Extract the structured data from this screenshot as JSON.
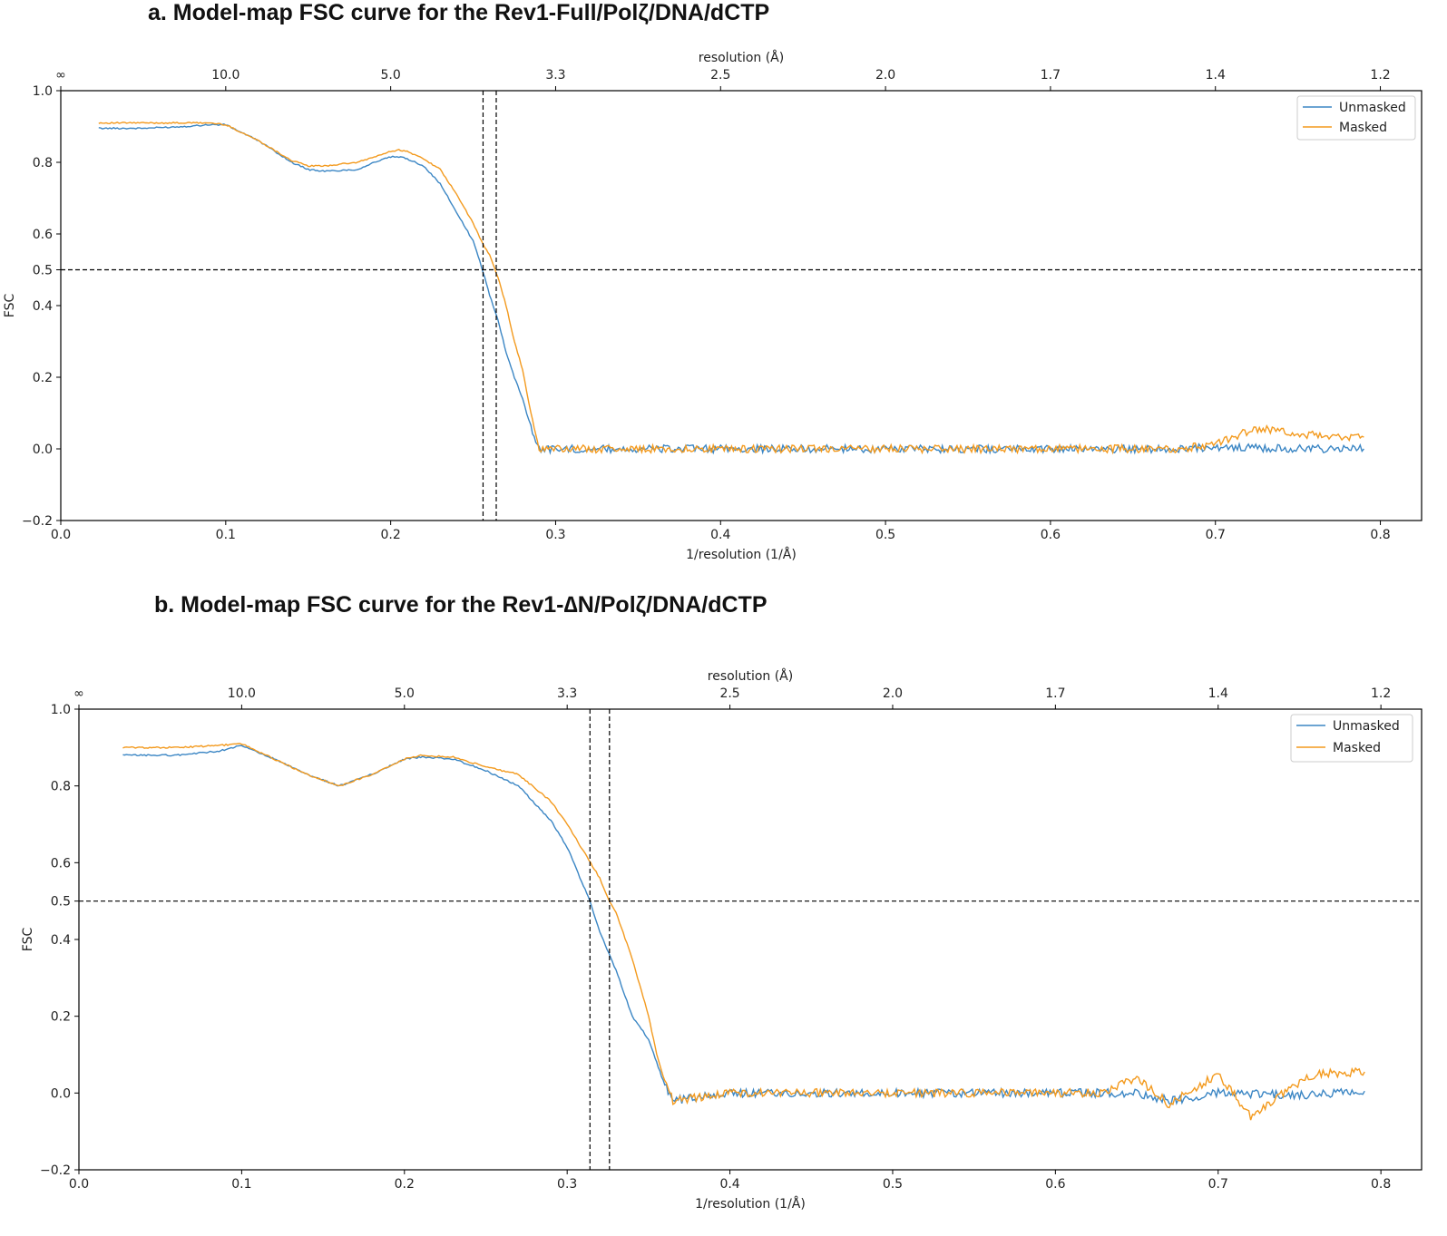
{
  "panels": [
    {
      "title": "a.  Model-map FSC curve for the Rev1-Full/Polζ/DNA/dCTP"
    },
    {
      "title": "b. Model-map FSC curve for the Rev1-∆N/Polζ/DNA/dCTP"
    }
  ],
  "colors": {
    "unmasked": "#3b86c4",
    "masked": "#f39a1e",
    "reference": "#000000"
  },
  "chart_data": [
    {
      "type": "line",
      "xlabel": "1/resolution (1/Å)",
      "ylabel": "FSC",
      "top_axis_label": "resolution (Å)",
      "xlim": [
        0.0,
        0.825
      ],
      "ylim": [
        -0.2,
        1.0
      ],
      "x_ticks": [
        "0.0",
        "0.1",
        "0.2",
        "0.3",
        "0.4",
        "0.5",
        "0.6",
        "0.7",
        "0.8"
      ],
      "y_ticks": [
        "−0.2",
        "0.0",
        "0.2",
        "0.4",
        "0.5",
        "0.6",
        "0.8",
        "1.0"
      ],
      "top_ticks": [
        {
          "label": "∞",
          "x": 0.0
        },
        {
          "label": "10.0",
          "x": 0.1
        },
        {
          "label": "5.0",
          "x": 0.2
        },
        {
          "label": "3.3",
          "x": 0.3
        },
        {
          "label": "2.5",
          "x": 0.4
        },
        {
          "label": "2.0",
          "x": 0.5
        },
        {
          "label": "1.7",
          "x": 0.6
        },
        {
          "label": "1.4",
          "x": 0.7
        },
        {
          "label": "1.2",
          "x": 0.8
        }
      ],
      "grid": false,
      "legend_position": "top-right",
      "reference_lines": {
        "horizontal_fsc": 0.5,
        "vertical_x": [
          0.256,
          0.264
        ]
      },
      "series": [
        {
          "name": "Unmasked",
          "x": [
            0.023,
            0.05,
            0.075,
            0.09,
            0.1,
            0.12,
            0.14,
            0.15,
            0.16,
            0.18,
            0.19,
            0.2,
            0.205,
            0.21,
            0.22,
            0.23,
            0.24,
            0.25,
            0.255,
            0.26,
            0.265,
            0.27,
            0.275,
            0.28,
            0.285,
            0.29,
            0.3,
            0.35,
            0.4,
            0.45,
            0.5,
            0.55,
            0.6,
            0.65,
            0.68,
            0.7,
            0.75,
            0.79
          ],
          "y": [
            0.895,
            0.895,
            0.9,
            0.905,
            0.905,
            0.86,
            0.8,
            0.78,
            0.775,
            0.78,
            0.8,
            0.815,
            0.815,
            0.81,
            0.79,
            0.74,
            0.66,
            0.58,
            0.51,
            0.43,
            0.36,
            0.27,
            0.2,
            0.14,
            0.06,
            0.0,
            0.0,
            0.0,
            0.0,
            0.0,
            0.0,
            0.0,
            0.0,
            0.0,
            0.0,
            0.005,
            0.0,
            0.0
          ]
        },
        {
          "name": "Masked",
          "x": [
            0.023,
            0.05,
            0.075,
            0.09,
            0.1,
            0.12,
            0.14,
            0.15,
            0.16,
            0.18,
            0.19,
            0.2,
            0.205,
            0.21,
            0.22,
            0.23,
            0.24,
            0.25,
            0.255,
            0.26,
            0.265,
            0.27,
            0.275,
            0.28,
            0.285,
            0.29,
            0.3,
            0.35,
            0.4,
            0.45,
            0.5,
            0.55,
            0.6,
            0.65,
            0.68,
            0.7,
            0.72,
            0.73,
            0.75,
            0.79
          ],
          "y": [
            0.91,
            0.91,
            0.91,
            0.91,
            0.905,
            0.86,
            0.805,
            0.79,
            0.79,
            0.8,
            0.815,
            0.83,
            0.835,
            0.83,
            0.81,
            0.78,
            0.71,
            0.63,
            0.58,
            0.54,
            0.48,
            0.4,
            0.3,
            0.22,
            0.1,
            0.0,
            0.0,
            0.0,
            0.0,
            0.0,
            0.0,
            0.0,
            0.0,
            0.0,
            0.0,
            0.015,
            0.05,
            0.055,
            0.04,
            0.033
          ]
        }
      ]
    },
    {
      "type": "line",
      "xlabel": "1/resolution (1/Å)",
      "ylabel": "FSC",
      "top_axis_label": "resolution (Å)",
      "xlim": [
        0.0,
        0.825
      ],
      "ylim": [
        -0.2,
        1.0
      ],
      "x_ticks": [
        "0.0",
        "0.1",
        "0.2",
        "0.3",
        "0.4",
        "0.5",
        "0.6",
        "0.7",
        "0.8"
      ],
      "y_ticks": [
        "−0.2",
        "0.0",
        "0.2",
        "0.4",
        "0.5",
        "0.6",
        "0.8",
        "1.0"
      ],
      "top_ticks": [
        {
          "label": "∞",
          "x": 0.0
        },
        {
          "label": "10.0",
          "x": 0.1
        },
        {
          "label": "5.0",
          "x": 0.2
        },
        {
          "label": "3.3",
          "x": 0.3
        },
        {
          "label": "2.5",
          "x": 0.4
        },
        {
          "label": "2.0",
          "x": 0.5
        },
        {
          "label": "1.7",
          "x": 0.6
        },
        {
          "label": "1.4",
          "x": 0.7
        },
        {
          "label": "1.2",
          "x": 0.8
        }
      ],
      "grid": false,
      "legend_position": "top-right",
      "reference_lines": {
        "horizontal_fsc": 0.5,
        "vertical_x": [
          0.314,
          0.326
        ]
      },
      "series": [
        {
          "name": "Unmasked",
          "x": [
            0.027,
            0.06,
            0.085,
            0.1,
            0.12,
            0.14,
            0.16,
            0.18,
            0.2,
            0.21,
            0.23,
            0.25,
            0.27,
            0.29,
            0.3,
            0.31,
            0.314,
            0.32,
            0.33,
            0.34,
            0.35,
            0.355,
            0.36,
            0.365,
            0.4,
            0.5,
            0.6,
            0.65,
            0.67,
            0.7,
            0.75,
            0.79
          ],
          "y": [
            0.88,
            0.88,
            0.89,
            0.905,
            0.87,
            0.83,
            0.8,
            0.83,
            0.87,
            0.875,
            0.87,
            0.84,
            0.8,
            0.71,
            0.64,
            0.54,
            0.5,
            0.42,
            0.32,
            0.2,
            0.14,
            0.08,
            0.02,
            -0.02,
            0.0,
            0.0,
            0.0,
            0.0,
            -0.02,
            0.0,
            -0.005,
            0.005
          ]
        },
        {
          "name": "Masked",
          "x": [
            0.027,
            0.06,
            0.085,
            0.1,
            0.12,
            0.14,
            0.16,
            0.18,
            0.2,
            0.21,
            0.23,
            0.25,
            0.27,
            0.29,
            0.3,
            0.31,
            0.32,
            0.326,
            0.33,
            0.34,
            0.35,
            0.355,
            0.36,
            0.365,
            0.4,
            0.5,
            0.6,
            0.63,
            0.65,
            0.67,
            0.7,
            0.72,
            0.74,
            0.76,
            0.79
          ],
          "y": [
            0.9,
            0.9,
            0.905,
            0.91,
            0.87,
            0.83,
            0.8,
            0.83,
            0.87,
            0.88,
            0.875,
            0.85,
            0.83,
            0.76,
            0.7,
            0.63,
            0.56,
            0.5,
            0.47,
            0.35,
            0.2,
            0.1,
            0.03,
            -0.02,
            0.0,
            0.0,
            0.0,
            0.0,
            0.04,
            -0.03,
            0.05,
            -0.06,
            0.0,
            0.05,
            0.055
          ]
        }
      ]
    }
  ]
}
